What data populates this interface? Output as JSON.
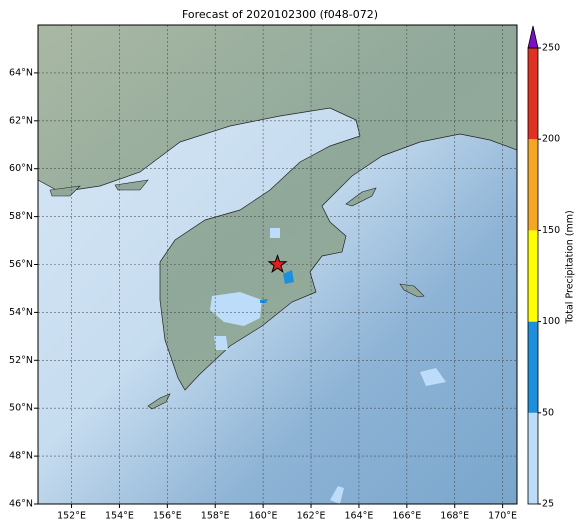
{
  "title": "Forecast of 2020102300 (f048-072)",
  "map": {
    "xlim": [
      150.6,
      170.6
    ],
    "ylim": [
      46,
      66
    ],
    "xticks": [
      {
        "value": 152,
        "label": "152°E"
      },
      {
        "value": 154,
        "label": "154°E"
      },
      {
        "value": 156,
        "label": "156°E"
      },
      {
        "value": 158,
        "label": "158°E"
      },
      {
        "value": 160,
        "label": "160°E"
      },
      {
        "value": 162,
        "label": "162°E"
      },
      {
        "value": 164,
        "label": "164°E"
      },
      {
        "value": 166,
        "label": "166°E"
      },
      {
        "value": 168,
        "label": "168°E"
      },
      {
        "value": 170,
        "label": "170°E"
      }
    ],
    "yticks": [
      {
        "value": 46,
        "label": "46°N"
      },
      {
        "value": 48,
        "label": "48°N"
      },
      {
        "value": 50,
        "label": "50°N"
      },
      {
        "value": 52,
        "label": "52°N"
      },
      {
        "value": 54,
        "label": "54°N"
      },
      {
        "value": 56,
        "label": "56°N"
      },
      {
        "value": 58,
        "label": "58°N"
      },
      {
        "value": 60,
        "label": "60°N"
      },
      {
        "value": 62,
        "label": "62°N"
      },
      {
        "value": 64,
        "label": "64°N"
      }
    ],
    "grid": true,
    "marker": {
      "lon": 160.6,
      "lat": 56.0,
      "color": "#e02020"
    }
  },
  "colorbar": {
    "label": "Total Precipitation (mm)",
    "levels": [
      25,
      50,
      100,
      150,
      200,
      250
    ],
    "colors": [
      "#bcdcfa",
      "#1e8fdc",
      "#ffff00",
      "#f5a623",
      "#e03222"
    ],
    "extend_color": "#7a10c8"
  }
}
